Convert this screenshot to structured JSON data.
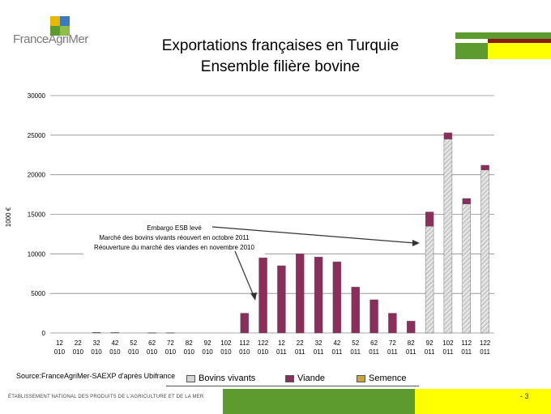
{
  "brand": {
    "logo_text": "FranceAgriMer"
  },
  "title_lines": [
    "Exportations françaises en Turquie",
    "Ensemble filière bovine"
  ],
  "source": "Source:FranceAgriMer-SAEXP d'après Ubifrance",
  "footer": {
    "text": "ÉTABLISSEMENT NATIONAL DES PRODUITS DE L'AGRICULTURE ET DE LA MER",
    "page": "- 3"
  },
  "colors": {
    "viande": "#8b2e5c",
    "bovins_vivants": "#d4d4d4",
    "semence": "#c9a63a",
    "green": "#5d9b2f",
    "yellow": "#ffff00"
  },
  "annotation": [
    "Embargo ESB levé",
    "Marché des bovins vivants réouvert en octobre 2011",
    "Réouverture du marché des viandes en novembre 2010"
  ],
  "chart_data": {
    "type": "bar",
    "stacked": true,
    "ylabel": "1000 €",
    "ylim": [
      0,
      30000
    ],
    "yticks": [
      0,
      5000,
      10000,
      15000,
      20000,
      25000,
      30000
    ],
    "x_top": [
      "12",
      "22",
      "32",
      "42",
      "52",
      "62",
      "72",
      "82",
      "92",
      "102",
      "112",
      "122",
      "12",
      "22",
      "32",
      "42",
      "52",
      "62",
      "72",
      "82",
      "92",
      "102",
      "112",
      "122"
    ],
    "x_bottom": [
      "010",
      "010",
      "010",
      "010",
      "010",
      "010",
      "010",
      "010",
      "010",
      "010",
      "010",
      "010",
      "011",
      "011",
      "011",
      "011",
      "011",
      "011",
      "011",
      "011",
      "011",
      "011",
      "011",
      "011"
    ],
    "legend_position": "bottom",
    "series": [
      {
        "name": "Bovins vivants",
        "values": [
          0,
          0,
          0,
          0,
          0,
          0,
          0,
          0,
          0,
          0,
          0,
          0,
          0,
          0,
          0,
          0,
          0,
          0,
          0,
          0,
          13500,
          24500,
          16300,
          20600
        ]
      },
      {
        "name": "Viande",
        "values": [
          0,
          0,
          80,
          60,
          0,
          40,
          40,
          0,
          0,
          0,
          2500,
          9500,
          8500,
          10000,
          9600,
          9000,
          5800,
          4200,
          2500,
          1500,
          1800,
          800,
          700,
          600
        ]
      },
      {
        "name": "Semence",
        "values": [
          0,
          0,
          0,
          0,
          0,
          0,
          0,
          0,
          0,
          0,
          0,
          0,
          0,
          0,
          0,
          0,
          0,
          0,
          0,
          0,
          0,
          0,
          0,
          0
        ]
      }
    ]
  }
}
